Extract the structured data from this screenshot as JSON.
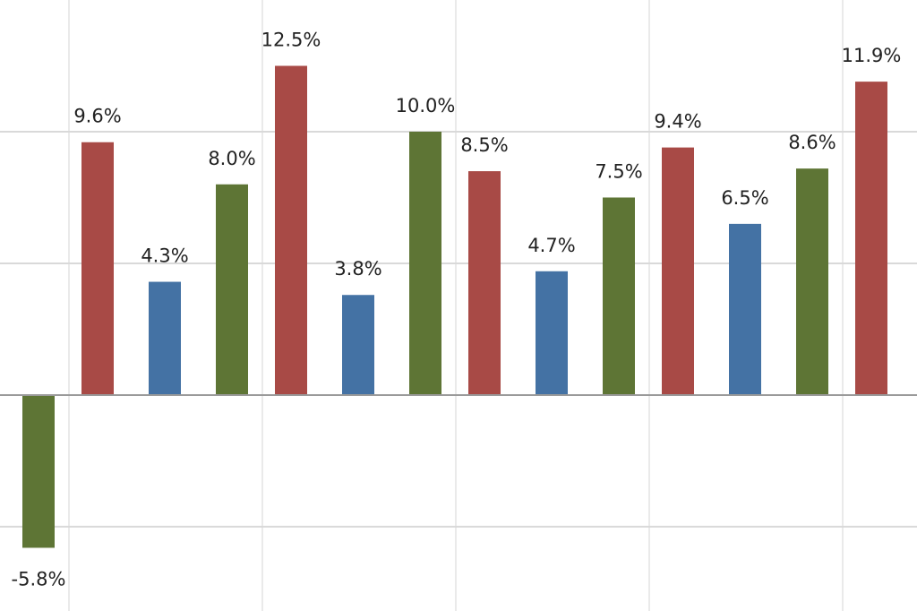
{
  "chart_data": {
    "type": "bar",
    "categories": [
      null,
      null,
      null,
      null,
      null,
      null,
      null,
      null,
      null,
      null,
      null,
      null,
      null,
      null
    ],
    "values": [
      -5.8,
      9.6,
      4.3,
      8.0,
      12.5,
      3.8,
      10.0,
      8.5,
      4.7,
      7.5,
      9.4,
      6.5,
      8.6,
      11.9
    ],
    "value_labels": [
      "-5.8%",
      "9.6%",
      "4.3%",
      "8.0%",
      "12.5%",
      "3.8%",
      "10.0%",
      "8.5%",
      "4.7%",
      "7.5%",
      "9.4%",
      "6.5%",
      "8.6%",
      "11.9%"
    ],
    "colors": [
      "#5e7535",
      "#a84a46",
      "#4472a4",
      "#5e7535",
      "#a84a46",
      "#4472a4",
      "#5e7535",
      "#a84a46",
      "#4472a4",
      "#5e7535",
      "#a84a46",
      "#4472a4",
      "#5e7535",
      "#a84a46"
    ],
    "ylim": [
      -8.2,
      15
    ],
    "yticks": [
      -5,
      0,
      5,
      10
    ],
    "grid": true
  }
}
